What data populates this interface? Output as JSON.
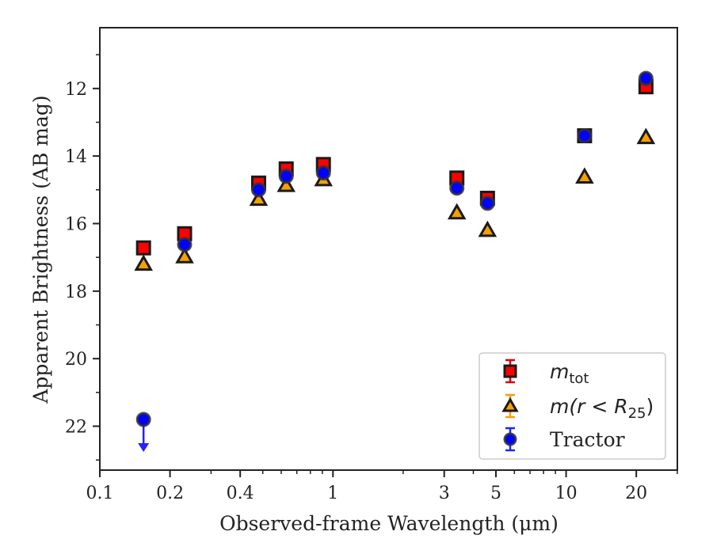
{
  "chart_data": {
    "type": "scatter",
    "title": "",
    "xlabel": "Observed-frame Wavelength (μm)",
    "ylabel": "Apparent Brightness (AB mag)",
    "xscale": "log",
    "xlim": [
      0.1,
      30
    ],
    "ylim": [
      23.3,
      10.2
    ],
    "y_inverted": true,
    "xticks": [
      0.1,
      0.2,
      0.4,
      1,
      3,
      5,
      10,
      20
    ],
    "xtick_labels": [
      "0.1",
      "0.2",
      "0.4",
      "1",
      "3",
      "5",
      "10",
      "20"
    ],
    "yticks": [
      12,
      14,
      16,
      18,
      20,
      22
    ],
    "ytick_labels": [
      "12",
      "14",
      "16",
      "18",
      "20",
      "22"
    ],
    "grid": false,
    "legend_position": "bottom-right",
    "series": [
      {
        "name": "m_tot",
        "legend_label": {
          "main": "m",
          "sub": "tot",
          "rest": ""
        },
        "marker": "square",
        "color": "#ff0000",
        "edge_color": "#1a1a1a",
        "x": [
          0.154,
          0.231,
          0.48,
          0.63,
          0.91,
          3.4,
          4.6,
          12.0,
          22.0
        ],
        "y": [
          16.72,
          16.3,
          14.8,
          14.38,
          14.25,
          14.65,
          15.25,
          13.4,
          11.95
        ]
      },
      {
        "name": "m(r < R25)",
        "legend_label": {
          "main": "m(r < R",
          "sub": "25",
          "rest": ")"
        },
        "marker": "triangle",
        "color": "#f5a000",
        "edge_color": "#1a1a1a",
        "x": [
          0.154,
          0.231,
          0.48,
          0.63,
          0.91,
          3.4,
          4.6,
          12.0,
          22.0
        ],
        "y": [
          17.2,
          16.98,
          15.28,
          14.87,
          14.7,
          15.68,
          16.2,
          14.62,
          13.45
        ]
      },
      {
        "name": "Tractor",
        "legend_label": {
          "main": "Tractor",
          "sub": "",
          "rest": ""
        },
        "marker": "circle",
        "color": "#0000ff",
        "edge_color": "#333333",
        "x": [
          0.154,
          0.231,
          0.48,
          0.63,
          0.91,
          3.4,
          4.6,
          12.0,
          22.0
        ],
        "y": [
          21.8,
          16.62,
          15.0,
          14.6,
          14.5,
          14.95,
          15.4,
          13.4,
          11.7
        ],
        "upper_limits": [
          true,
          false,
          false,
          false,
          false,
          false,
          false,
          false,
          false
        ]
      }
    ]
  }
}
